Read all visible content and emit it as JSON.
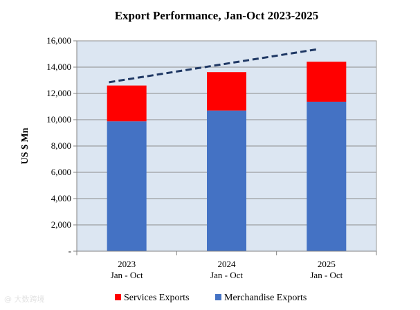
{
  "chart_data": {
    "type": "bar",
    "stacked": true,
    "title": "Export Performance, Jan-Oct  2023-2025",
    "xlabel": "",
    "ylabel": "US $ Mn",
    "categories": [
      [
        "2023",
        "Jan - Oct"
      ],
      [
        "2024",
        "Jan - Oct"
      ],
      [
        "2025",
        "Jan - Oct"
      ]
    ],
    "series": [
      {
        "name": "Merchandise Exports",
        "color": "#4472C4",
        "values": [
          9880,
          10700,
          11370
        ]
      },
      {
        "name": "Services Exports",
        "color": "#FF0000",
        "values": [
          2720,
          2920,
          3040
        ]
      }
    ],
    "trend_line": {
      "color": "#1F3864",
      "style": "dashed",
      "from": [
        2023,
        12850
      ],
      "to": [
        2025,
        15350
      ]
    },
    "ylim": [
      0,
      16000
    ],
    "yticks": [
      0,
      2000,
      4000,
      6000,
      8000,
      10000,
      12000,
      14000,
      16000
    ],
    "ytick_labels": [
      "-",
      "2,000",
      "4,000",
      "6,000",
      "8,000",
      "10,000",
      "12,000",
      "14,000",
      "16,000"
    ],
    "grid": true,
    "plot_background": "#DCE6F2",
    "legend": {
      "position": "bottom",
      "order": [
        "Services Exports",
        "Merchandise Exports"
      ]
    }
  },
  "watermark": "@ 大数跨境"
}
